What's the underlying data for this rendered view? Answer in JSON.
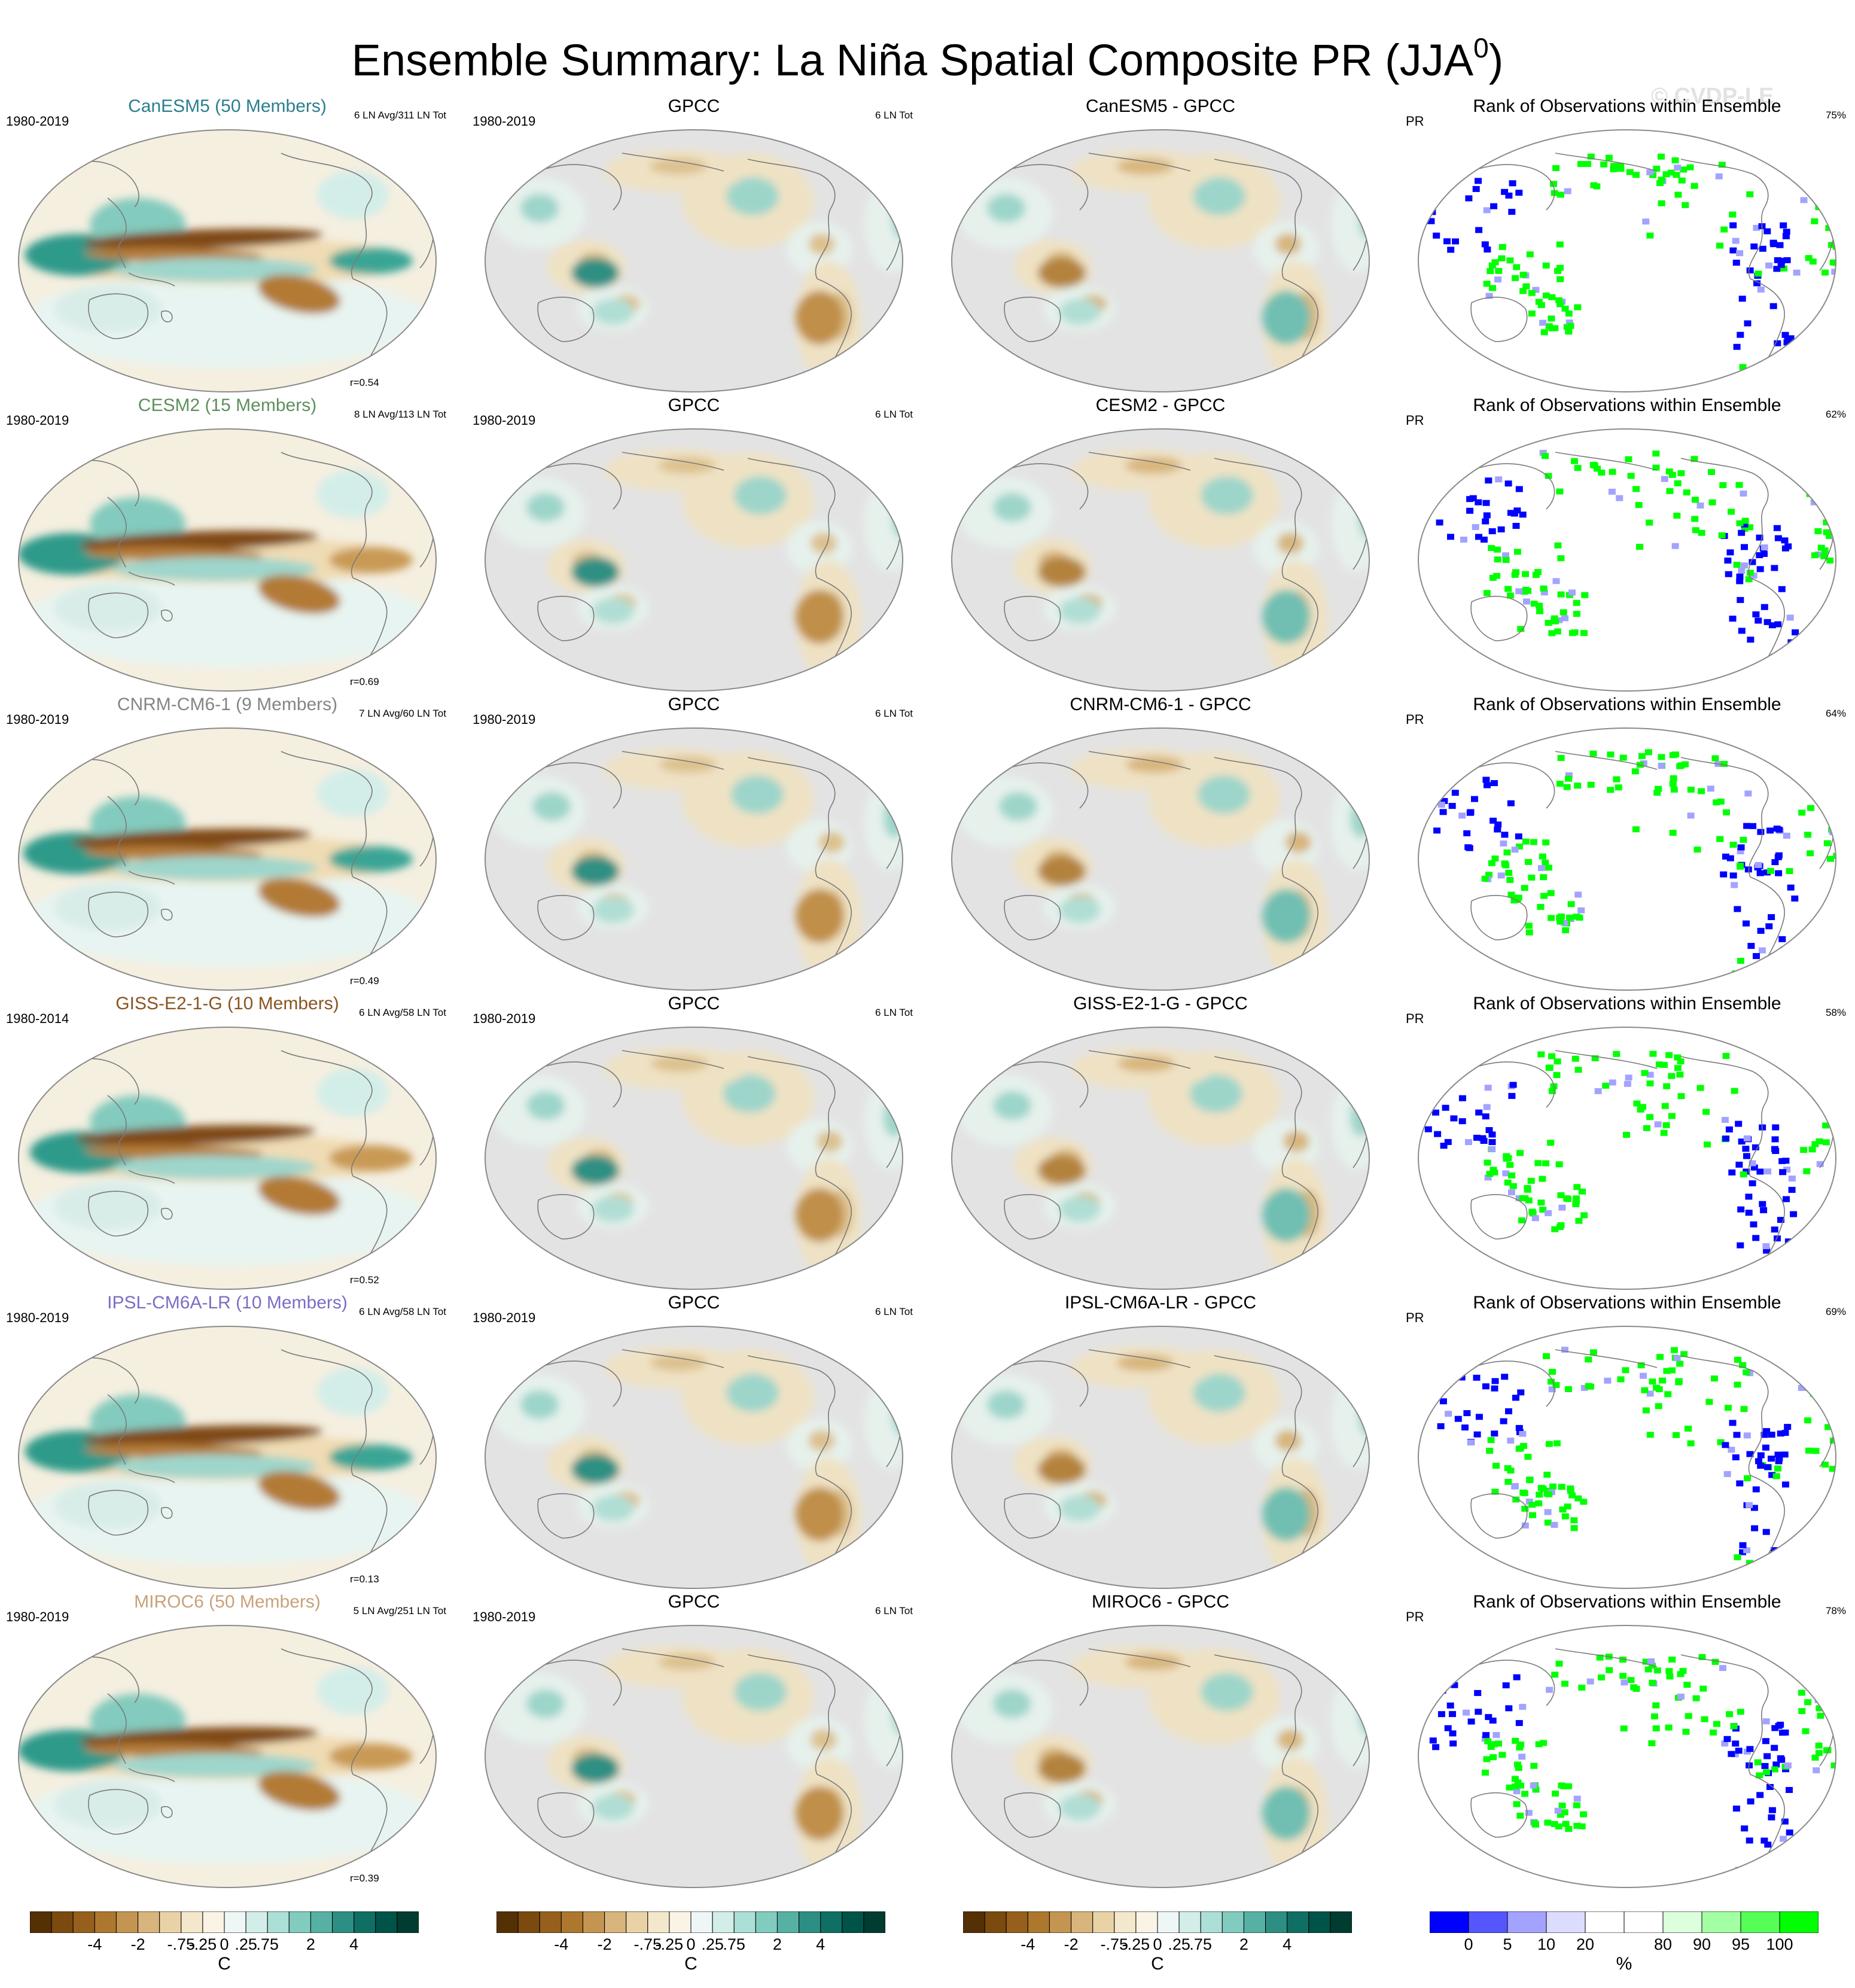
{
  "title": {
    "text": "Ensemble Summary: La Niña Spatial Composite PR (JJA",
    "sup": "0",
    "close": ")"
  },
  "watermark": "© CVDP-LE",
  "rows": [
    {
      "model": {
        "title": "CanESM5 (50 Members)",
        "color": "#2a7f8f",
        "years": "1980-2019",
        "count": "6 LN Avg/311 LN Tot",
        "r": "r=0.54"
      },
      "obs": {
        "title": "GPCC",
        "years": "1980-2019",
        "count": "6 LN Tot"
      },
      "diff": {
        "title": "CanESM5 - GPCC"
      },
      "rank": {
        "title": "Rank of Observations within Ensemble",
        "var": "PR",
        "pct": "75%"
      }
    },
    {
      "model": {
        "title": "CESM2 (15 Members)",
        "color": "#5f8f5f",
        "years": "1980-2019",
        "count": "8 LN Avg/113 LN Tot",
        "r": "r=0.69"
      },
      "obs": {
        "title": "GPCC",
        "years": "1980-2019",
        "count": "6 LN Tot"
      },
      "diff": {
        "title": "CESM2 - GPCC"
      },
      "rank": {
        "title": "Rank of Observations within Ensemble",
        "var": "PR",
        "pct": "62%"
      }
    },
    {
      "model": {
        "title": "CNRM-CM6-1 (9 Members)",
        "color": "#858585",
        "years": "1980-2019",
        "count": "7 LN Avg/60 LN Tot",
        "r": "r=0.49"
      },
      "obs": {
        "title": "GPCC",
        "years": "1980-2019",
        "count": "6 LN Tot"
      },
      "diff": {
        "title": "CNRM-CM6-1 - GPCC"
      },
      "rank": {
        "title": "Rank of Observations within Ensemble",
        "var": "PR",
        "pct": "64%"
      }
    },
    {
      "model": {
        "title": "GISS-E2-1-G (10 Members)",
        "color": "#8a5420",
        "years": "1980-2014",
        "count": "6 LN Avg/58 LN Tot",
        "r": "r=0.52"
      },
      "obs": {
        "title": "GPCC",
        "years": "1980-2019",
        "count": "6 LN Tot"
      },
      "diff": {
        "title": "GISS-E2-1-G - GPCC"
      },
      "rank": {
        "title": "Rank of Observations within Ensemble",
        "var": "PR",
        "pct": "58%"
      }
    },
    {
      "model": {
        "title": "IPSL-CM6A-LR (10 Members)",
        "color": "#7e6cc4",
        "years": "1980-2019",
        "count": "6 LN Avg/58 LN Tot",
        "r": "r=0.13"
      },
      "obs": {
        "title": "GPCC",
        "years": "1980-2019",
        "count": "6 LN Tot"
      },
      "diff": {
        "title": "IPSL-CM6A-LR - GPCC"
      },
      "rank": {
        "title": "Rank of Observations within Ensemble",
        "var": "PR",
        "pct": "69%"
      }
    },
    {
      "model": {
        "title": "MIROC6 (50 Members)",
        "color": "#c9a27a",
        "years": "1980-2019",
        "count": "5 LN Avg/251 LN Tot",
        "r": "r=0.39"
      },
      "obs": {
        "title": "GPCC",
        "years": "1980-2019",
        "count": "6 LN Tot"
      },
      "diff": {
        "title": "MIROC6 - GPCC"
      },
      "rank": {
        "title": "Rank of Observations within Ensemble",
        "var": "PR",
        "pct": "78%"
      }
    }
  ],
  "colorbars": {
    "pr": {
      "colors": [
        "#543005",
        "#7a4a0e",
        "#96601c",
        "#ad782e",
        "#c49551",
        "#d8b57c",
        "#e9d3a6",
        "#f4e8cc",
        "#faf4e6",
        "#eef7f5",
        "#d3eee9",
        "#acdfd6",
        "#82cbbf",
        "#56b1a4",
        "#2d8f83",
        "#0f6f64",
        "#005348",
        "#003c30"
      ],
      "ticks": [
        "-4",
        "-2",
        "-.75",
        "-.25",
        "0",
        ".25",
        ".75",
        "2",
        "4"
      ],
      "unit": "C"
    },
    "rank": {
      "colors": [
        "#0000ff",
        "#5656ff",
        "#a3a3ff",
        "#dcdcff",
        "#ffffff",
        "#ffffff",
        "#dcffdc",
        "#a3ffa3",
        "#56ff56",
        "#00ff00"
      ],
      "ticks": [
        "0",
        "5",
        "10",
        "20",
        "80",
        "90",
        "95",
        "100"
      ],
      "unit": "%"
    }
  }
}
